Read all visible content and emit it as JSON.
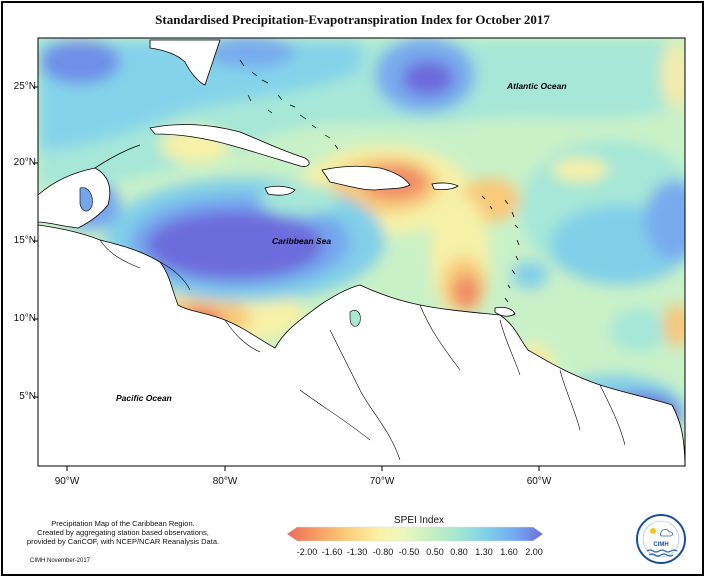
{
  "title": "Standardised Precipitation-Evapotranspiration Index for October 2017",
  "lat_labels": [
    "25°N",
    "20°N",
    "15°N",
    "10°N",
    "5°N"
  ],
  "lon_labels": [
    "90°W",
    "80°W",
    "70°W",
    "60°W"
  ],
  "place_labels": {
    "atlantic": "Atlantic Ocean",
    "caribbean": "Caribbean Sea",
    "pacific": "Pacific Ocean"
  },
  "caption": {
    "line1": "Precipitation Map of the Caribbean Region.",
    "line2": "Created by aggregating station based observations,",
    "line3": "provided by CariCOF, with NCEP/NCAR Reanalysis Data."
  },
  "credit": "CIMH November-2017",
  "legend": {
    "title": "SPEI Index",
    "values": [
      "-2.00",
      "-1.60",
      "-1.30",
      "-0.80",
      "-0.50",
      "0.50",
      "0.80",
      "1.30",
      "1.60",
      "2.00"
    ],
    "colors": [
      "#ef6b5a",
      "#f6a062",
      "#fad07a",
      "#fbf2a6",
      "#eaf7c0",
      "#c8f0c2",
      "#a8e8cf",
      "#7fcfe9",
      "#74a6ee",
      "#6d6cdc"
    ]
  },
  "logo_text": "CIMH"
}
